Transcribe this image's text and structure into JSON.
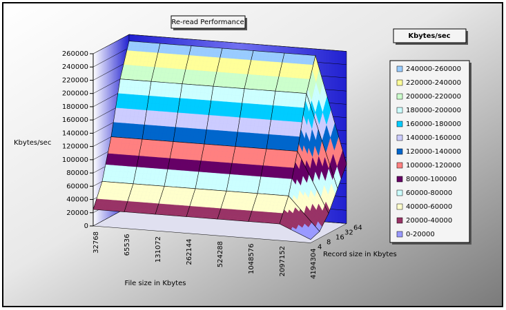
{
  "chart_data": {
    "type": "surface",
    "title": "Re-read Performance",
    "y_label": "Kbytes/sec",
    "x_label": "File size in Kbytes",
    "depth_label": "Record size in Kbytes",
    "categories": [
      "32768",
      "65536",
      "131072",
      "262144",
      "524288",
      "1048576",
      "2097152",
      "4194304"
    ],
    "series": [
      {
        "name": "4",
        "values": [
          25000,
          25000,
          25000,
          25000,
          25000,
          25000,
          25000,
          5000
        ]
      },
      {
        "name": "8",
        "values": [
          60000,
          60000,
          60000,
          60000,
          60000,
          60000,
          60000,
          10000
        ]
      },
      {
        "name": "16",
        "values": [
          120000,
          120000,
          120000,
          120000,
          120000,
          120000,
          120000,
          30000
        ]
      },
      {
        "name": "32",
        "values": [
          200000,
          200000,
          200000,
          200000,
          200000,
          200000,
          200000,
          60000
        ]
      },
      {
        "name": "64",
        "values": [
          250000,
          250000,
          250000,
          250000,
          250000,
          250000,
          250000,
          90000
        ]
      }
    ],
    "ylim": [
      0,
      260000
    ],
    "yticks": [
      0,
      20000,
      40000,
      60000,
      80000,
      100000,
      120000,
      140000,
      160000,
      180000,
      200000,
      220000,
      240000,
      260000
    ],
    "grid": true,
    "legend": {
      "title": "Kbytes/sec",
      "position": "right",
      "items": [
        {
          "label": "240000-260000",
          "color": "#99ccff"
        },
        {
          "label": "220000-240000",
          "color": "#ffff99"
        },
        {
          "label": "200000-220000",
          "color": "#ccffcc"
        },
        {
          "label": "180000-200000",
          "color": "#ccffff"
        },
        {
          "label": "160000-180000",
          "color": "#00ccff"
        },
        {
          "label": "140000-160000",
          "color": "#ccccff"
        },
        {
          "label": "120000-140000",
          "color": "#0066cc"
        },
        {
          "label": "100000-120000",
          "color": "#ff8080"
        },
        {
          "label": "80000-100000",
          "color": "#660066"
        },
        {
          "label": "60000-80000",
          "color": "#ccffff"
        },
        {
          "label": "40000-60000",
          "color": "#ffffcc"
        },
        {
          "label": "20000-40000",
          "color": "#993366"
        },
        {
          "label": "0-20000",
          "color": "#9999ff"
        }
      ]
    }
  }
}
